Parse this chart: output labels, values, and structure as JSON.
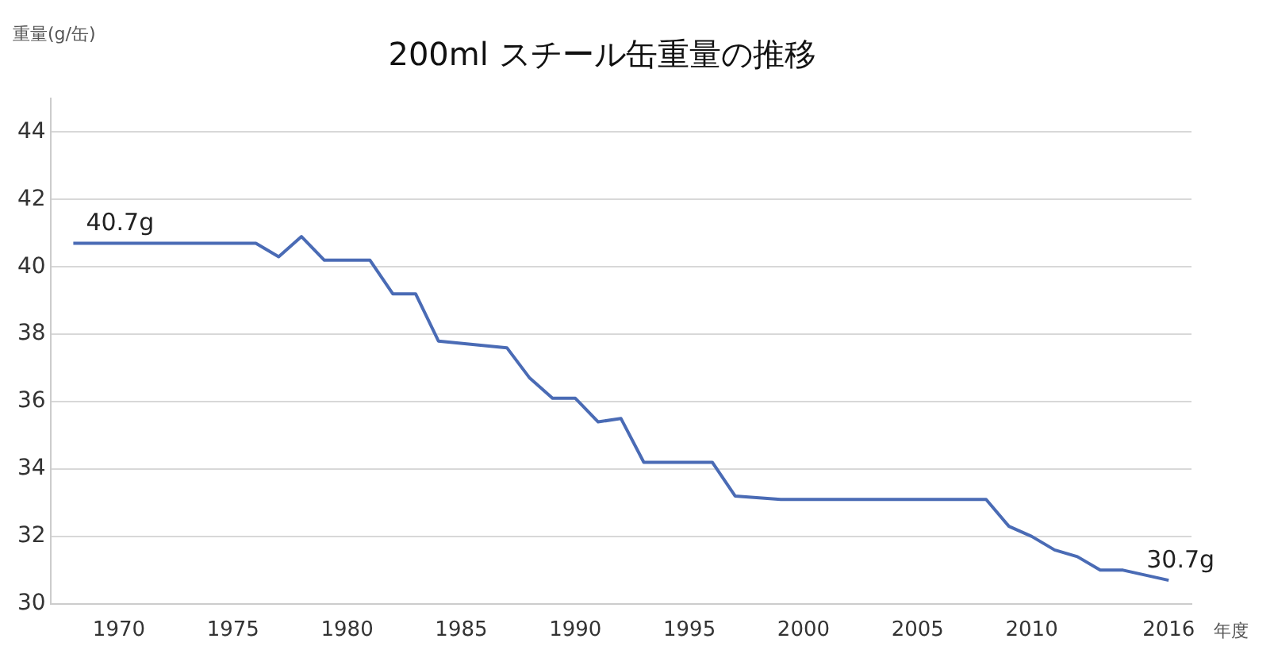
{
  "chart_data": {
    "type": "line",
    "title": "200ml スチール缶重量の推移",
    "ylabel": "重量(g/缶)",
    "xlabel": "年度",
    "x": [
      1968,
      1976,
      1977,
      1978,
      1979,
      1981,
      1982,
      1983,
      1984,
      1987,
      1988,
      1989,
      1990,
      1991,
      1992,
      1993,
      1996,
      1997,
      1999,
      2008,
      2009,
      2010,
      2011,
      2012,
      2013,
      2014,
      2016
    ],
    "series": [
      {
        "color": "#4a6bb5",
        "values": [
          40.7,
          40.7,
          40.3,
          40.9,
          40.2,
          40.2,
          39.2,
          39.2,
          37.8,
          37.6,
          36.7,
          36.1,
          36.1,
          35.4,
          35.5,
          34.2,
          34.2,
          33.2,
          33.1,
          33.1,
          32.3,
          32.0,
          31.6,
          31.4,
          31.0,
          31.0,
          30.7
        ]
      }
    ],
    "xlim": [
      1967,
      2017
    ],
    "xticks": [
      1970,
      1975,
      1980,
      1985,
      1990,
      1995,
      2000,
      2005,
      2010,
      2016
    ],
    "ylim": [
      30,
      45
    ],
    "yticks": [
      30,
      32,
      34,
      36,
      38,
      40,
      42,
      44
    ],
    "annotations": [
      {
        "text": "40.7g",
        "x": 1968,
        "y": 40.7
      },
      {
        "text": "30.7g",
        "x": 2016,
        "y": 30.7
      }
    ],
    "grid": "y",
    "legend": false,
    "marker": "none",
    "line_style": "solid"
  }
}
